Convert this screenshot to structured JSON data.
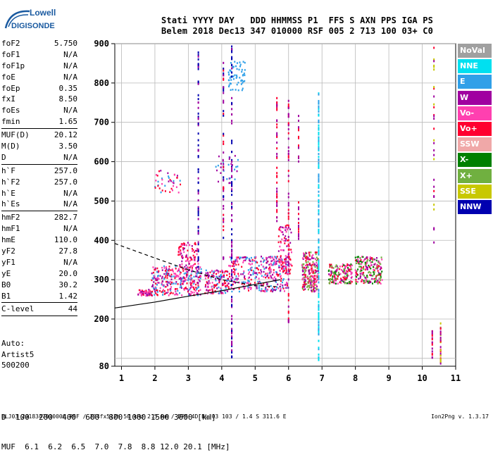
{
  "logo": {
    "line1": "Lowell",
    "line2": "DIGISONDE"
  },
  "header": {
    "labels": "Stati YYYY DAY   DDD HHMMSS P1  FFS S AXN PPS IGA PS",
    "values": "Belem 2018 Dec13 347 010000 RSF 005 2 713 100 03+ C0"
  },
  "params": [
    {
      "name": "foF2",
      "value": "5.750"
    },
    {
      "name": "foF1",
      "value": "N/A"
    },
    {
      "name": "foF1p",
      "value": "N/A"
    },
    {
      "name": "foE",
      "value": "N/A"
    },
    {
      "name": "foEp",
      "value": "0.35"
    },
    {
      "name": "fxI",
      "value": "8.50"
    },
    {
      "name": "foEs",
      "value": "N/A"
    },
    {
      "name": "fmin",
      "value": "1.65"
    },
    {
      "sep": true
    },
    {
      "name": "MUF(D)",
      "value": "20.12"
    },
    {
      "name": "M(D)",
      "value": "3.50"
    },
    {
      "name": "D",
      "value": "N/A"
    },
    {
      "sep": true
    },
    {
      "name": "h`F",
      "value": "257.0"
    },
    {
      "name": "h`F2",
      "value": "257.0"
    },
    {
      "name": "h`E",
      "value": "N/A"
    },
    {
      "name": "h`Es",
      "value": "N/A"
    },
    {
      "sep": true
    },
    {
      "name": "hmF2",
      "value": "282.7"
    },
    {
      "name": "hmF1",
      "value": "N/A"
    },
    {
      "name": "hmE",
      "value": "110.0"
    },
    {
      "name": "yF2",
      "value": "27.8"
    },
    {
      "name": "yF1",
      "value": "N/A"
    },
    {
      "name": "yE",
      "value": "20.0"
    },
    {
      "name": "B0",
      "value": "30.2"
    },
    {
      "name": "B1",
      "value": "1.42"
    },
    {
      "sep": true
    },
    {
      "name": "C-level",
      "value": "44"
    },
    {
      "sep": true
    }
  ],
  "auto": {
    "line1": "Auto:",
    "line2": "Artist5",
    "line3": "500200"
  },
  "muf_table": {
    "row_d_label": "D",
    "row_d": "  100  200  400  600  800 1000 1500 3000 [km]",
    "row_muf_label": "MUF",
    "row_muf": "  6.1  6.2  6.5  7.0  7.8  8.8 12.0 20.1 [MHz]"
  },
  "footer": {
    "file": "BLJ03_2018347010000.RSF / 204fx512h 50 kHz 2.5 km / DPS-4D BLJ03 103 / 1.4 S 311.6 E",
    "version": "Ion2Png v. 1.3.17"
  },
  "legend": [
    {
      "label": "NoVal",
      "bg": "#a0a0a0",
      "fg": "#ffffff"
    },
    {
      "label": "NNE",
      "bg": "#00e0f0",
      "fg": "#ffffff"
    },
    {
      "label": "E",
      "bg": "#30a0e8",
      "fg": "#ffffff"
    },
    {
      "label": "W",
      "bg": "#a000a0",
      "fg": "#ffffff"
    },
    {
      "label": "Vo-",
      "bg": "#ff40b0",
      "fg": "#ffffff"
    },
    {
      "label": "Vo+",
      "bg": "#ff0030",
      "fg": "#ffffff"
    },
    {
      "label": "SSW",
      "bg": "#f0a8a8",
      "fg": "#ffffff"
    },
    {
      "label": "X-",
      "bg": "#008000",
      "fg": "#ffffff"
    },
    {
      "label": "X+",
      "bg": "#70b040",
      "fg": "#ffffff"
    },
    {
      "label": "SSE",
      "bg": "#c8c800",
      "fg": "#ffffff"
    },
    {
      "label": "NNW",
      "bg": "#0000b0",
      "fg": "#ffffff"
    }
  ],
  "chart_data": {
    "type": "scatter",
    "xlim": [
      0.8,
      11
    ],
    "ylim": [
      80,
      900
    ],
    "x_ticks": [
      1,
      2,
      3,
      4,
      5,
      6,
      7,
      8,
      9,
      10,
      11
    ],
    "y_ticks": [
      80,
      200,
      300,
      400,
      500,
      600,
      700,
      800,
      900
    ],
    "y_gridlines": [
      100,
      200,
      300,
      400,
      500,
      600,
      700,
      800,
      900
    ],
    "grid": true,
    "profile_solid": [
      [
        0.8,
        228
      ],
      [
        2,
        243
      ],
      [
        3,
        258
      ],
      [
        4,
        272
      ],
      [
        5,
        288
      ],
      [
        5.75,
        300
      ]
    ],
    "profile_dashed": [
      [
        0.8,
        392
      ],
      [
        2,
        355
      ],
      [
        3,
        325
      ],
      [
        4,
        300
      ],
      [
        5,
        285
      ],
      [
        5.75,
        282
      ]
    ],
    "echo_clusters": [
      {
        "x": [
          1.5,
          1.9
        ],
        "y": [
          258,
          275
        ],
        "n": 50,
        "colors": [
          "#ff0030",
          "#a000a0",
          "#ff40b0"
        ]
      },
      {
        "x": [
          1.9,
          3.4
        ],
        "y": [
          260,
          335
        ],
        "n": 320,
        "colors": [
          "#ff0030",
          "#a000a0",
          "#ff40b0",
          "#30a0e8"
        ]
      },
      {
        "x": [
          2.7,
          3.3
        ],
        "y": [
          330,
          395
        ],
        "n": 90,
        "colors": [
          "#ff0030",
          "#a000a0",
          "#ff40b0"
        ]
      },
      {
        "x": [
          3.5,
          4.2
        ],
        "y": [
          265,
          325
        ],
        "n": 140,
        "colors": [
          "#ff0030",
          "#a000a0",
          "#30a0e8",
          "#ff40b0"
        ]
      },
      {
        "x": [
          4.2,
          6.0
        ],
        "y": [
          270,
          360
        ],
        "n": 360,
        "colors": [
          "#30a0e8",
          "#ff0030",
          "#a000a0",
          "#ff40b0"
        ]
      },
      {
        "x": [
          5.7,
          6.1
        ],
        "y": [
          310,
          440
        ],
        "n": 90,
        "colors": [
          "#ff0030",
          "#a000a0",
          "#ff40b0"
        ]
      },
      {
        "x": [
          6.4,
          6.9
        ],
        "y": [
          270,
          370
        ],
        "n": 220,
        "colors": [
          "#ff0030",
          "#a000a0",
          "#ff40b0",
          "#70b040"
        ]
      },
      {
        "x": [
          7.2,
          7.9
        ],
        "y": [
          290,
          340
        ],
        "n": 160,
        "colors": [
          "#ff0030",
          "#008000",
          "#70b040",
          "#a000a0",
          "#ff40b0"
        ]
      },
      {
        "x": [
          8.0,
          8.8
        ],
        "y": [
          290,
          360
        ],
        "n": 200,
        "colors": [
          "#ff0030",
          "#a000a0",
          "#008000",
          "#70b040",
          "#ff40b0"
        ]
      },
      {
        "x": [
          2.0,
          2.8
        ],
        "y": [
          520,
          580
        ],
        "n": 40,
        "colors": [
          "#a000a0",
          "#30a0e8",
          "#ff0030",
          "#ff40b0"
        ]
      },
      {
        "x": [
          4.2,
          4.7
        ],
        "y": [
          780,
          860
        ],
        "n": 60,
        "colors": [
          "#30a0e8"
        ]
      },
      {
        "x": [
          3.8,
          4.5
        ],
        "y": [
          540,
          620
        ],
        "n": 30,
        "colors": [
          "#30a0e8",
          "#a000a0"
        ]
      }
    ],
    "echo_columns": [
      {
        "x": 3.3,
        "y": [
          330,
          880
        ],
        "n": 70,
        "colors": [
          "#0000b0",
          "#a000a0"
        ]
      },
      {
        "x": 4.3,
        "y": [
          100,
          900
        ],
        "n": 110,
        "colors": [
          "#0000b0",
          "#a000a0"
        ]
      },
      {
        "x": 4.05,
        "y": [
          350,
          880
        ],
        "n": 50,
        "colors": [
          "#0000b0",
          "#a000a0",
          "#ff0030"
        ]
      },
      {
        "x": 5.65,
        "y": [
          420,
          770
        ],
        "n": 45,
        "colors": [
          "#a000a0",
          "#ff0030"
        ]
      },
      {
        "x": 6.0,
        "y": [
          180,
          760
        ],
        "n": 60,
        "colors": [
          "#a000a0",
          "#ff0030"
        ]
      },
      {
        "x": 6.3,
        "y": [
          400,
          740
        ],
        "n": 30,
        "colors": [
          "#a000a0",
          "#ff0030"
        ]
      },
      {
        "x": 6.9,
        "y": [
          90,
          780
        ],
        "n": 160,
        "colors": [
          "#30a0e8",
          "#00e0f0"
        ]
      },
      {
        "x": 10.35,
        "y": [
          380,
          900
        ],
        "n": 30,
        "colors": [
          "#c8c800",
          "#ff0030",
          "#a000a0"
        ]
      },
      {
        "x": 10.55,
        "y": [
          80,
          190
        ],
        "n": 30,
        "colors": [
          "#ff0030",
          "#a000a0",
          "#c8c800"
        ]
      },
      {
        "x": 10.3,
        "y": [
          100,
          170
        ],
        "n": 16,
        "colors": [
          "#a000a0",
          "#ff0030"
        ]
      }
    ]
  }
}
